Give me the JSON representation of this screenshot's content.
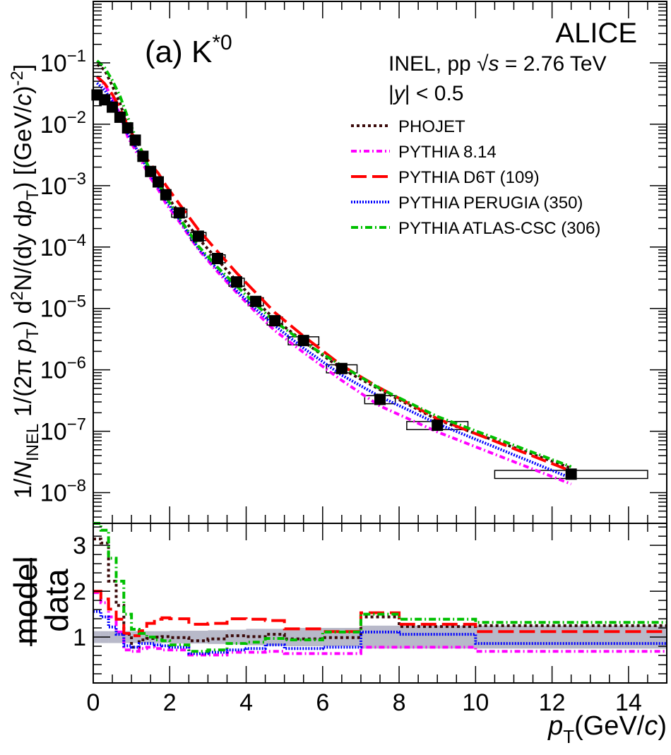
{
  "chart_data": [
    {
      "type": "scatter",
      "panel": "spectrum",
      "title": "(a) K*0",
      "title_parts": {
        "main": "(a) K",
        "sup": "*0"
      },
      "experiment": "ALICE",
      "info_line1": {
        "pre": "INEL, pp ",
        "sqrt": "√",
        "s": "s",
        "post": " = 2.76 TeV"
      },
      "info_line2": {
        "pre": "|",
        "y": "y",
        "post": "| < 0.5"
      },
      "ylabel_parts": [
        "1/",
        "N",
        "INEL",
        " 1/(2π ",
        "p",
        "T",
        ") d",
        "2",
        "N/(dy d",
        "p",
        "T",
        ") [(GeV/",
        "c",
        ")",
        "-2",
        "]"
      ],
      "yscale": "log",
      "ylim": [
        3.16e-09,
        1.0
      ],
      "xlim": [
        0,
        15
      ],
      "ytick_labels": [
        {
          "base": "10",
          "exp": "−1"
        },
        {
          "base": "10",
          "exp": "−2"
        },
        {
          "base": "10",
          "exp": "−3"
        },
        {
          "base": "10",
          "exp": "−4"
        },
        {
          "base": "10",
          "exp": "−5"
        },
        {
          "base": "10",
          "exp": "−6"
        },
        {
          "base": "10",
          "exp": "−7"
        },
        {
          "base": "10",
          "exp": "−8"
        }
      ],
      "ytick_values": [
        0.1,
        0.01,
        0.001,
        0.0001,
        1e-05,
        1e-06,
        1e-07,
        1e-08
      ],
      "bins": [
        [
          0,
          0.2
        ],
        [
          0.2,
          0.4
        ],
        [
          0.4,
          0.6
        ],
        [
          0.6,
          0.8
        ],
        [
          0.8,
          1.0
        ],
        [
          1.0,
          1.2
        ],
        [
          1.2,
          1.4
        ],
        [
          1.4,
          1.6
        ],
        [
          1.6,
          1.8
        ],
        [
          1.8,
          2.0
        ],
        [
          2.0,
          2.5
        ],
        [
          2.5,
          3.0
        ],
        [
          3.0,
          3.5
        ],
        [
          3.5,
          4.0
        ],
        [
          4.0,
          4.5
        ],
        [
          4.5,
          5.0
        ],
        [
          5.0,
          6.0
        ],
        [
          6.0,
          7.0
        ],
        [
          7.0,
          8.0
        ],
        [
          8.0,
          10.0
        ],
        [
          10.0,
          15.0
        ]
      ],
      "data": {
        "pt": [
          0.1,
          0.3,
          0.5,
          0.7,
          0.9,
          1.1,
          1.3,
          1.5,
          1.7,
          1.9,
          2.25,
          2.75,
          3.25,
          3.75,
          4.25,
          4.75,
          5.5,
          6.5,
          7.5,
          9.0,
          12.5
        ],
        "yield": [
          0.03,
          0.025,
          0.019,
          0.013,
          0.0087,
          0.0055,
          0.003,
          0.0017,
          0.00115,
          0.00071,
          0.00036,
          0.00015,
          6.5e-05,
          2.7e-05,
          1.3e-05,
          6.3e-06,
          3e-06,
          1.05e-06,
          3.3e-07,
          1.25e-07,
          2e-08
        ],
        "sys_rel": 0.15
      },
      "legend_placement": "top-right"
    },
    {
      "type": "line",
      "panel": "ratio",
      "ylabel": {
        "num": "model",
        "den": "data"
      },
      "xlabel_parts": {
        "p": "p",
        "T": "T",
        "unit_pre": "(GeV/",
        "c": "c",
        "unit_post": ")"
      },
      "xlim": [
        0,
        15
      ],
      "ylim": [
        0,
        3.48
      ],
      "xtick_labels": [
        "0",
        "2",
        "4",
        "6",
        "8",
        "10",
        "12",
        "14"
      ],
      "ytick_labels": [
        "1",
        "2",
        "3"
      ],
      "band_rel_unc": [
        0.13,
        0.13,
        0.13,
        0.13,
        0.13,
        0.13,
        0.13,
        0.13,
        0.13,
        0.13,
        0.14,
        0.14,
        0.15,
        0.16,
        0.18,
        0.18,
        0.2,
        0.2,
        0.25,
        0.25,
        0.25
      ],
      "band_color": "#7d7f9c",
      "series": [
        {
          "name": "PHOJET",
          "color": "#3a0a0a",
          "dash": "4,4",
          "ratio": [
            3.14,
            3.05,
            2.22,
            1.69,
            1.06,
            0.78,
            0.94,
            0.97,
            1.0,
            1.01,
            0.99,
            0.92,
            0.96,
            1.03,
            1.01,
            1.06,
            0.96,
            0.99,
            1.44,
            1.23,
            1.25
          ]
        },
        {
          "name": "PYTHIA 8.14",
          "color": "#ff00ff",
          "dash": "8,4,2,4",
          "ratio": [
            1.97,
            1.75,
            1.44,
            1.11,
            0.72,
            0.69,
            0.75,
            0.78,
            0.75,
            0.72,
            0.72,
            0.61,
            0.61,
            0.67,
            0.67,
            0.69,
            0.64,
            0.64,
            0.78,
            0.78,
            0.69
          ]
        },
        {
          "name": "PYTHIA D6T (109)",
          "color": "#ff0000",
          "dash": "22,8",
          "ratio": [
            2.0,
            1.83,
            1.61,
            1.39,
            1.08,
            1.03,
            1.14,
            1.3,
            1.39,
            1.42,
            1.4,
            1.28,
            1.3,
            1.4,
            1.39,
            1.36,
            1.18,
            1.12,
            1.53,
            1.28,
            1.12
          ]
        },
        {
          "name": "PYTHIA PERUGIA (350)",
          "color": "#0000ff",
          "dash": "2,2",
          "ratio": [
            1.56,
            1.44,
            1.22,
            1.06,
            0.81,
            0.78,
            0.86,
            0.86,
            0.83,
            0.81,
            0.78,
            0.64,
            0.67,
            0.72,
            0.75,
            0.83,
            0.75,
            0.78,
            1.11,
            1.06,
            0.86
          ]
        },
        {
          "name": "PYTHIA ATLAS-CSC (306)",
          "color": "#00c000",
          "dash": "10,4,2,4",
          "ratio": [
            3.6,
            3.33,
            2.72,
            2.22,
            1.5,
            1.17,
            1.08,
            1.0,
            0.94,
            0.92,
            0.83,
            0.69,
            0.72,
            0.86,
            0.89,
            0.97,
            0.94,
            1.11,
            1.5,
            1.39,
            1.32
          ]
        }
      ]
    }
  ]
}
